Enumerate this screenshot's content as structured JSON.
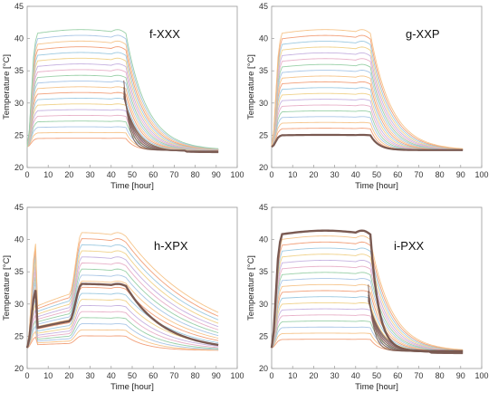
{
  "chart_data": [
    {
      "type": "line",
      "title": "f-XXX",
      "xlabel": "Time [hour]",
      "ylabel": "Temperature [°C]",
      "xlim": [
        0,
        100
      ],
      "ylim": [
        20,
        45
      ],
      "xticks": [
        "0",
        "10",
        "20",
        "30",
        "40",
        "50",
        "60",
        "70",
        "80",
        "90",
        "100"
      ],
      "yticks": [
        "20",
        "25",
        "30",
        "35",
        "40",
        "45"
      ],
      "pattern": "uniform",
      "n_curves": 20,
      "curve_peak_range": [
        24.5,
        40.8
      ],
      "heat_end_hour": 47,
      "settle_temperature": 22.7,
      "last_hour": 91,
      "dark_band": "cooling tail"
    },
    {
      "type": "line",
      "title": "g-XXP",
      "xlabel": "Time [hour]",
      "ylabel": "Temperature [°C]",
      "xlim": [
        0,
        100
      ],
      "ylim": [
        20,
        45
      ],
      "xticks": [
        "0",
        "10",
        "20",
        "30",
        "40",
        "50",
        "60",
        "70",
        "80",
        "90",
        "100"
      ],
      "yticks": [
        "20",
        "25",
        "30",
        "35",
        "40",
        "45"
      ],
      "pattern": "uniform-bottom-bold",
      "n_curves": 18,
      "curve_peak_range": [
        26.0,
        40.8
      ],
      "bold_curve_plateau": 25.0,
      "heat_end_hour": 47,
      "settle_temperature": 22.7,
      "last_hour": 91,
      "dark_band": "lowest curve"
    },
    {
      "type": "line",
      "title": "h-XPX",
      "xlabel": "Time [hour]",
      "ylabel": "Temperature [°C]",
      "xlim": [
        0,
        100
      ],
      "ylim": [
        20,
        45
      ],
      "xticks": [
        "0",
        "10",
        "20",
        "30",
        "40",
        "50",
        "60",
        "70",
        "80",
        "90",
        "100"
      ],
      "yticks": [
        "20",
        "25",
        "30",
        "35",
        "40",
        "45"
      ],
      "pattern": "middle-bold",
      "n_curves": 18,
      "curve_peak_range": [
        25.0,
        40.5
      ],
      "bold_curve_plateau": 32.8,
      "heat_end_hour": 47,
      "settle_temperature": 22.8,
      "last_hour": 91,
      "dark_band": "middle curve"
    },
    {
      "type": "line",
      "title": "i-PXX",
      "xlabel": "Time [hour]",
      "ylabel": "Temperature [°C]",
      "xlim": [
        0,
        100
      ],
      "ylim": [
        20,
        45
      ],
      "xticks": [
        "0",
        "10",
        "20",
        "30",
        "40",
        "50",
        "60",
        "70",
        "80",
        "90",
        "100"
      ],
      "yticks": [
        "20",
        "25",
        "30",
        "35",
        "40",
        "45"
      ],
      "pattern": "top-bold",
      "n_curves": 18,
      "curve_peak_range": [
        24.5,
        40.0
      ],
      "bold_curve_plateau": 40.8,
      "heat_end_hour": 47,
      "settle_temperature": 22.7,
      "last_hour": 91,
      "dark_band": "top curve and tail"
    }
  ],
  "colors": {
    "axis": "#9a9a9a",
    "bold": "#7a5a52",
    "palette": [
      "#f2a07a",
      "#f6c48a",
      "#a9c6e6",
      "#9ad0a8",
      "#e8b0c8",
      "#c6b2e0",
      "#f0d28a",
      "#9ecae1"
    ]
  }
}
